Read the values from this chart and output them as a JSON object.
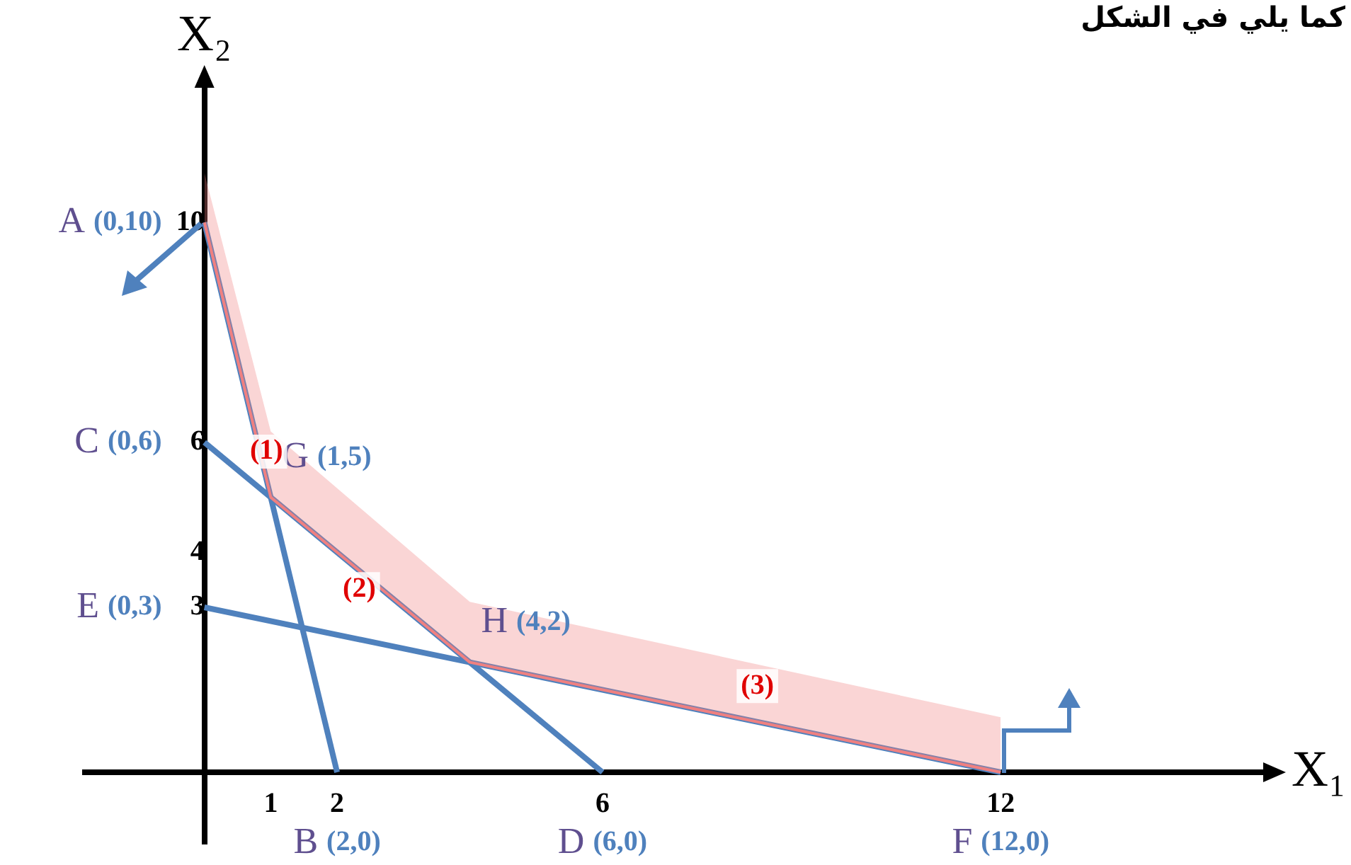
{
  "chart_data": {
    "type": "line",
    "title": "كما يلي في الشكل",
    "xlabel": "X₁",
    "ylabel": "X₂",
    "xlim": [
      -1.8,
      16
    ],
    "ylim": [
      -1.3,
      12.5
    ],
    "xticks": [
      1,
      2,
      6,
      12
    ],
    "yticks": [
      3,
      4,
      6,
      10
    ],
    "grid": false,
    "legend": false,
    "series": [
      {
        "color": "#f08080",
        "x": [
          0,
          1,
          4,
          12
        ],
        "values": [
          10,
          5,
          2,
          0
        ],
        "lower": [
          10,
          5,
          2,
          0
        ],
        "upper": [
          10.9,
          6.2,
          3.1,
          1
        ]
      },
      {
        "color": "#4f81bd",
        "x": [
          0,
          2
        ],
        "values": [
          10,
          0
        ]
      },
      {
        "color": "#4f81bd",
        "x": [
          0,
          6
        ],
        "values": [
          6,
          0
        ]
      },
      {
        "color": "#4f81bd",
        "x": [
          0,
          12
        ],
        "values": [
          3,
          0
        ]
      }
    ],
    "annotations": [
      {
        "text": "A (0,10)",
        "x": 0,
        "y": 10
      },
      {
        "text": "C (0,6)",
        "x": 0,
        "y": 6
      },
      {
        "text": "E (0,3)",
        "x": 0,
        "y": 3
      },
      {
        "text": "G (1,5)",
        "x": 1,
        "y": 5
      },
      {
        "text": "H (4,2)",
        "x": 4,
        "y": 2
      },
      {
        "text": "B (2,0)",
        "x": 2,
        "y": 0
      },
      {
        "text": "D (6,0)",
        "x": 6,
        "y": 0
      },
      {
        "text": "F (12,0)",
        "x": 12,
        "y": 0
      },
      {
        "text": "(1)",
        "x": 0.6,
        "y": 6.5
      },
      {
        "text": "(2)",
        "x": 2,
        "y": 4
      },
      {
        "text": "(3)",
        "x": 8,
        "y": 1
      }
    ]
  }
}
